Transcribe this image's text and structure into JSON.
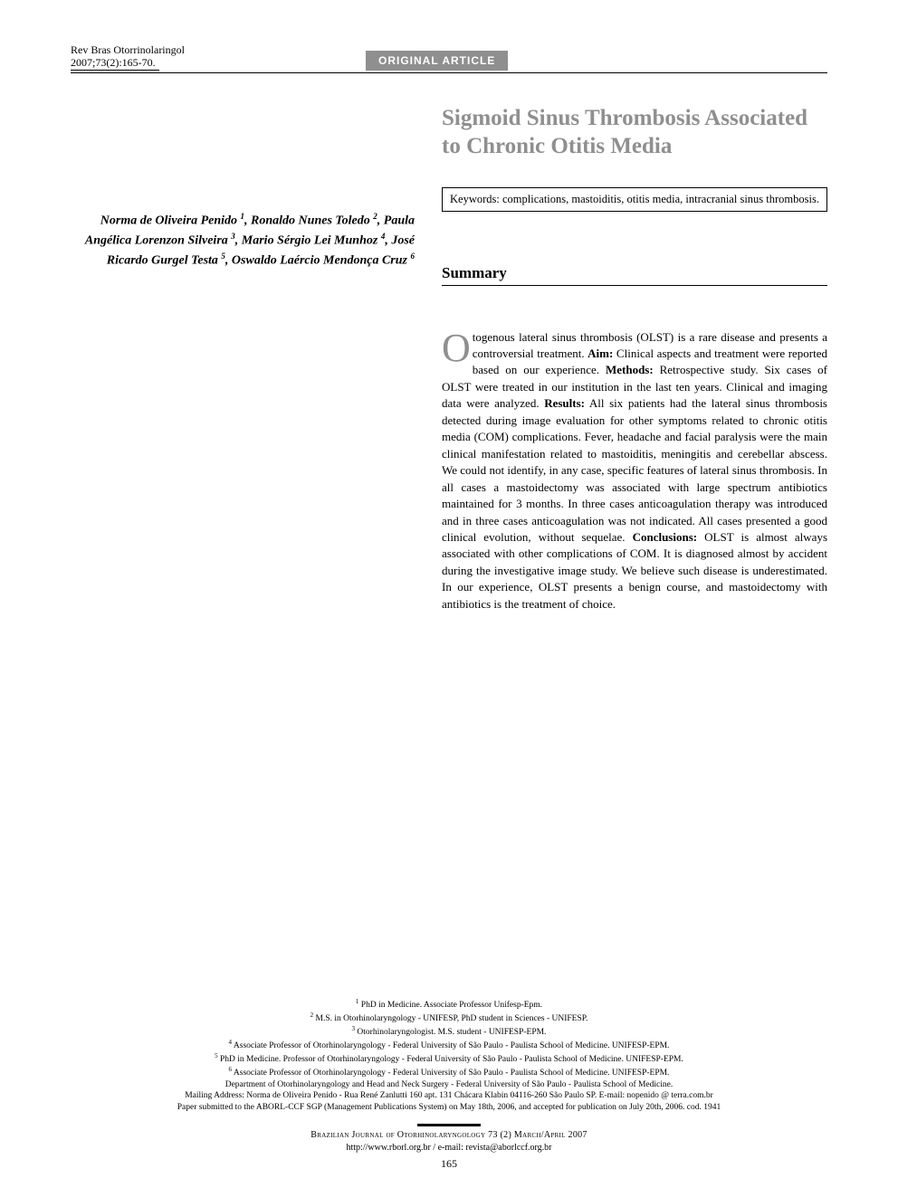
{
  "header": {
    "journal_line1": "Rev Bras Otorrinolaringol",
    "journal_line2": "2007;73(2):165-70.",
    "article_type": "ORIGINAL ARTICLE"
  },
  "title": "Sigmoid Sinus Thrombosis Associated to Chronic Otitis Media",
  "authors_html": "Norma de Oliveira Penido <sup>1</sup>, Ronaldo Nunes Toledo <sup>2</sup>, Paula Angélica Lorenzon Silveira <sup>3</sup>, Mario Sérgio Lei Munhoz <sup>4</sup>, José Ricardo Gurgel Testa <sup>5</sup>, Oswaldo Laércio Mendonça Cruz <sup>6</sup>",
  "keywords": "Keywords: complications, mastoiditis, otitis media, intracranial sinus thrombosis.",
  "summary_heading": "Summary",
  "summary": {
    "dropcap": "O",
    "body_html": "togenous lateral sinus thrombosis (OLST) is a rare disease and presents a controversial treatment. <b>Aim:</b> Clinical aspects and treatment were reported based on our experience. <b>Methods:</b> Retrospective study. Six cases of OLST were treated in our institution in the last ten years. Clinical and imaging data were analyzed. <b>Results:</b> All six patients had the lateral sinus thrombosis detected during image evaluation for other symptoms related to chronic otitis media (COM) complications. Fever, headache and facial paralysis were the main clinical manifestation related to mastoiditis, meningitis and cerebellar abscess. We could not identify, in any case, specific features of lateral sinus thrombosis. In all cases a mastoidectomy was associated with large spectrum antibiotics maintained for 3 months. In three cases anticoagulation therapy was introduced and in three cases anticoagulation was not indicated. All cases presented a good clinical evolution, without sequelae. <b>Conclusions:</b> OLST is almost always associated with other complications of COM. It is diagnosed almost by accident during the investigative image study. We believe such disease is underestimated. In our experience, OLST presents a benign course, and mastoidectomy with antibiotics is the treatment of choice."
  },
  "affiliations": [
    "<sup>1</sup> PhD in Medicine. Associate Professor Unifesp-Epm.",
    "<sup>2</sup> M.S. in Otorhinolaryngology - UNIFESP, PhD student in Sciences - UNIFESP.",
    "<sup>3</sup> Otorhinolaryngologist. M.S. student - UNIFESP-EPM.",
    "<sup>4</sup> Associate Professor of Otorhinolaryngology - Federal University of São Paulo - Paulista School of Medicine. UNIFESP-EPM.",
    "<sup>5</sup> PhD in Medicine. Professor of Otorhinolaryngology - Federal University of São Paulo - Paulista School of Medicine. UNIFESP-EPM.",
    "<sup>6</sup> Associate Professor of Otorhinolaryngology - Federal University of São Paulo - Paulista School of Medicine. UNIFESP-EPM.",
    "Department of Otorhinolaryngology and Head and Neck Surgery - Federal University of São Paulo - Paulista School of Medicine.",
    "Mailing Address: Norma de Oliveira Penido - Rua René Zanlutti 160 apt. 131 Chácara Klabin 04116-260 São Paulo SP. E-mail: nopenido @ terra.com.br",
    "Paper submitted to the ABORL-CCF SGP (Management Publications System) on May 18th, 2006, and accepted for publication on July 20th, 2006. cod. 1941"
  ],
  "footer": {
    "journal": "Brazilian Journal of Otorhinolaryngology 73 (2) March/April 2007",
    "url": "http://www.rborl.org.br  /  e-mail: revista@aborlccf.org.br",
    "page": "165"
  },
  "colors": {
    "muted_gray": "#8f8f8f",
    "text": "#000000",
    "bg": "#ffffff"
  },
  "typography": {
    "title_fontsize": 25,
    "body_fontsize": 13,
    "author_fontsize": 14,
    "affil_fontsize": 9.5,
    "footer_fontsize": 10,
    "dropcap_fontsize": 44
  }
}
